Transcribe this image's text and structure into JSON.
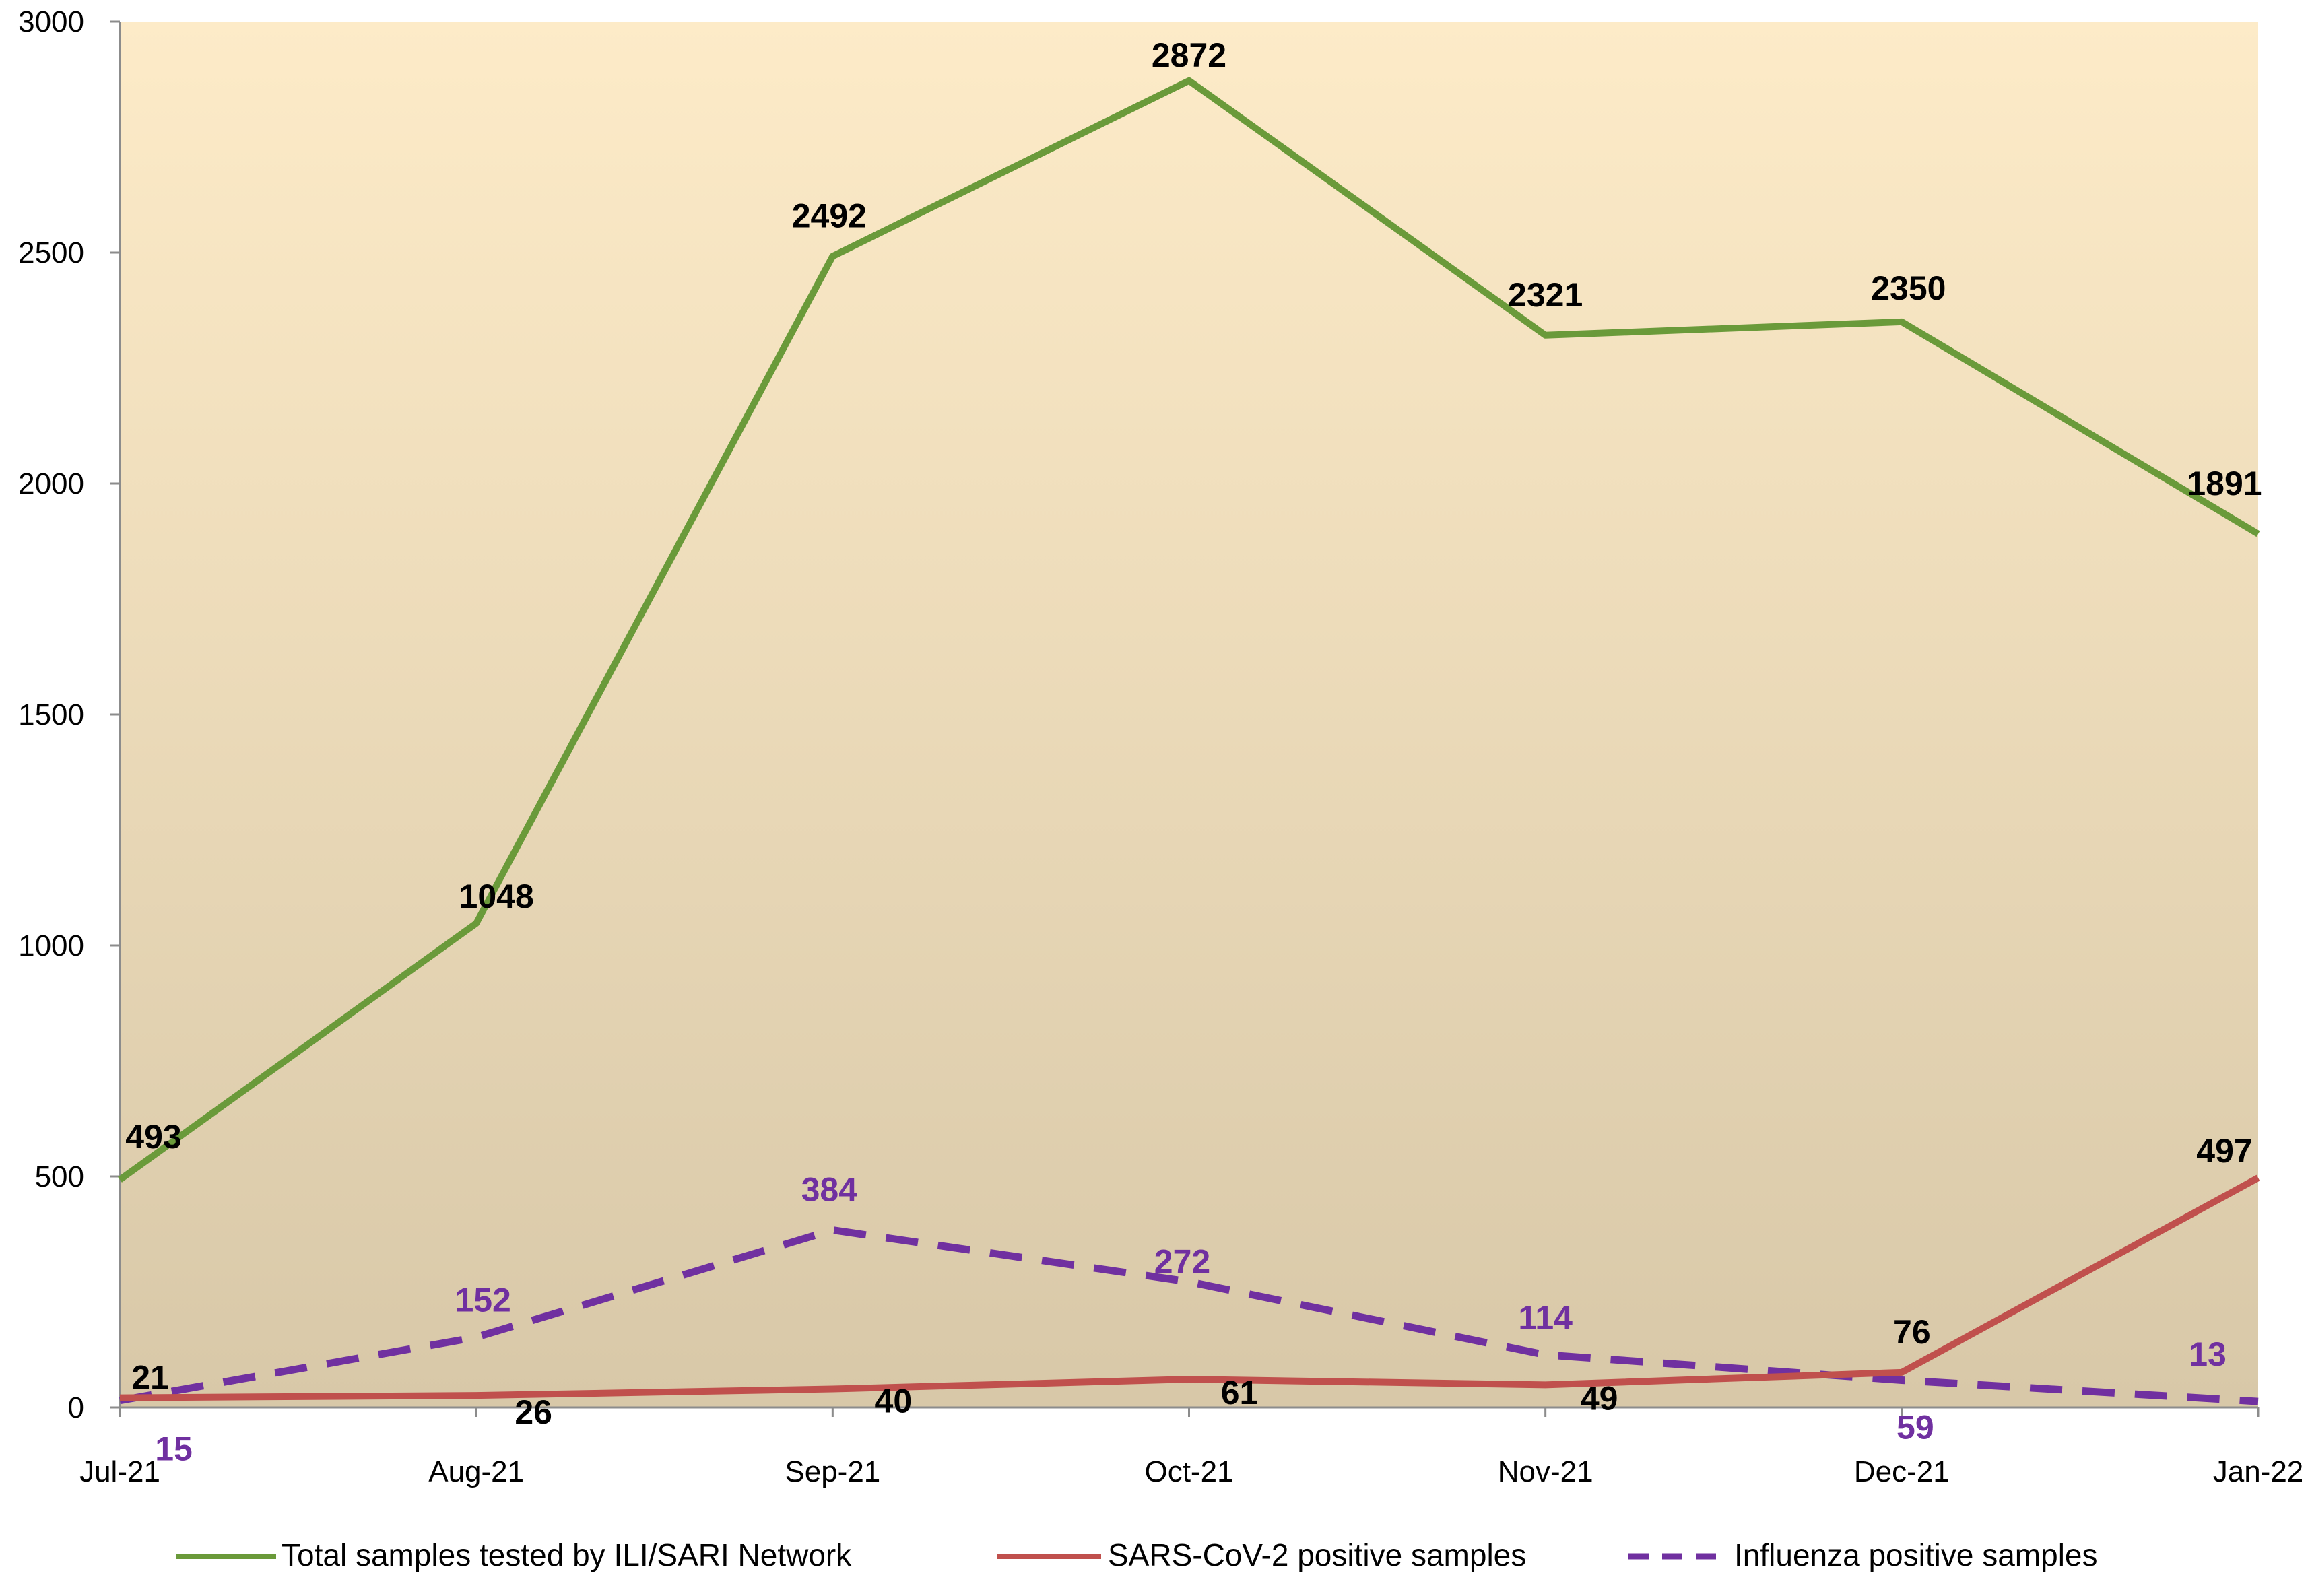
{
  "chart_data": {
    "type": "line",
    "title": "",
    "xlabel": "",
    "ylabel": "",
    "ylim": [
      0,
      3000
    ],
    "yticks": [
      0,
      500,
      1000,
      1500,
      2000,
      2500,
      3000
    ],
    "ytick_labels": [
      "0",
      "500",
      "1000",
      "1500",
      "2000",
      "2500",
      "3000"
    ],
    "categories": [
      "Jul-21",
      "Aug-21",
      "Sep-21",
      "Oct-21",
      "Nov-21",
      "Dec-21",
      "Jan-22"
    ],
    "grid": false,
    "legend_position": "bottom",
    "series": [
      {
        "key": "total",
        "name": "Total samples  tested by ILI/SARI Network",
        "values": [
          493,
          1048,
          2492,
          2872,
          2321,
          2350,
          1891
        ],
        "labels": [
          "493",
          "1048",
          "2492",
          "2872",
          "2321",
          "2350",
          "1891"
        ],
        "color": "#6a9a3a",
        "label_color": "#000000",
        "dashed": false
      },
      {
        "key": "sars",
        "name": "SARS-CoV-2 positive samples",
        "values": [
          21,
          26,
          40,
          61,
          49,
          76,
          497
        ],
        "labels": [
          "21",
          "26",
          "40",
          "61",
          "49",
          "76",
          "497"
        ],
        "color": "#c0504d",
        "label_color": "#000000",
        "dashed": false
      },
      {
        "key": "flu",
        "name": "Influenza positive samples",
        "values": [
          15,
          152,
          384,
          272,
          114,
          59,
          13
        ],
        "labels": [
          "15",
          "152",
          "384",
          "272",
          "114",
          "59",
          "13"
        ],
        "color": "#7030a0",
        "label_color": "#7030a0",
        "dashed": true
      }
    ],
    "background_gradient": [
      "#fdebc8",
      "#d8c8a8"
    ]
  }
}
